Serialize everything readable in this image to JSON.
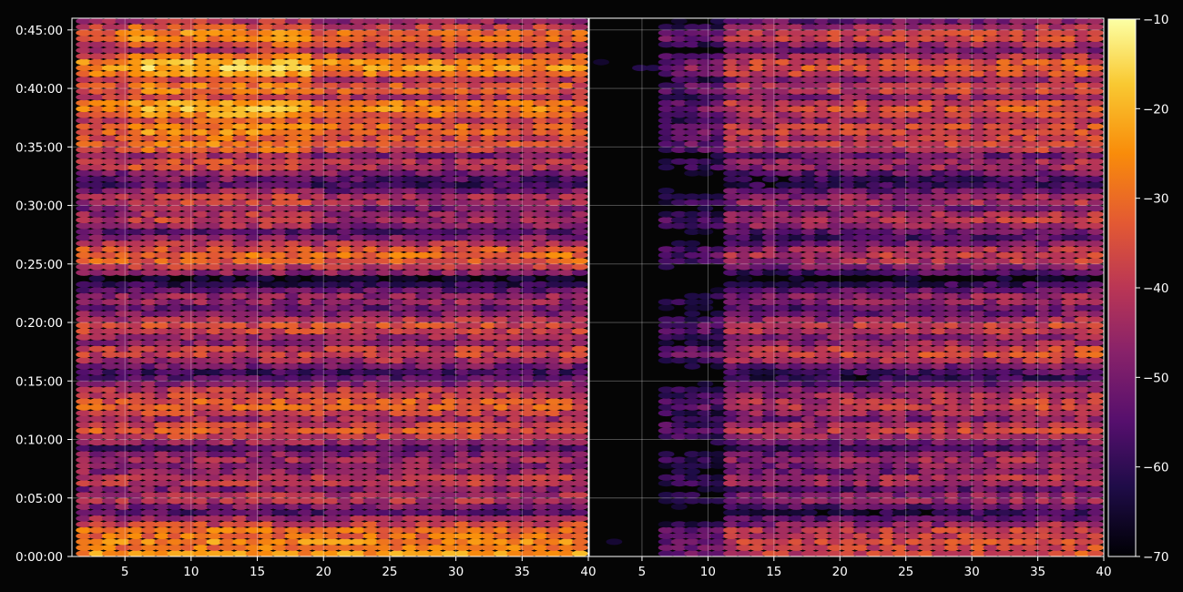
{
  "chart_data": {
    "type": "heatmap",
    "title": "",
    "panels": [
      {
        "name": "",
        "x_range": [
          1,
          40
        ],
        "x_ticks": [
          5,
          10,
          15,
          20,
          25,
          30,
          35,
          40
        ],
        "y_ticks": [
          "0:00:00",
          "0:05:00",
          "0:10:00",
          "0:15:00",
          "0:20:00",
          "0:25:00",
          "0:30:00",
          "0:35:00",
          "0:40:00",
          "0:45:00"
        ]
      },
      {
        "name": "",
        "x_range": [
          1,
          40
        ],
        "x_ticks": [
          5,
          10,
          15,
          20,
          25,
          30,
          35,
          40
        ],
        "y_ticks": []
      }
    ],
    "y_range_minutes": [
      0,
      46
    ],
    "colorbar": {
      "colormap": "inferno",
      "range": [
        -70,
        -10
      ],
      "ticks": [
        "−10",
        "−20",
        "−30",
        "−40",
        "−50",
        "−60",
        "−70"
      ]
    },
    "approx_levels": {
      "description_rows": "time rows (minutes) with approximate level in dB for left panel / right panel",
      "rows": [
        {
          "t": 0.3,
          "left": -24,
          "right": -42
        },
        {
          "t": 1.2,
          "left": -26,
          "right": -40
        },
        {
          "t": 2.0,
          "left": -30,
          "right": -44
        },
        {
          "t": 5.0,
          "left": -42,
          "right": -52
        },
        {
          "t": 6.5,
          "left": -40,
          "right": -48
        },
        {
          "t": 8.2,
          "left": -44,
          "right": -50
        },
        {
          "t": 10.8,
          "left": -34,
          "right": -44
        },
        {
          "t": 12.9,
          "left": -32,
          "right": -44
        },
        {
          "t": 13.8,
          "left": -38,
          "right": -48
        },
        {
          "t": 17.4,
          "left": -38,
          "right": -42
        },
        {
          "t": 19.6,
          "left": -36,
          "right": -44
        },
        {
          "t": 22.0,
          "left": -46,
          "right": -52
        },
        {
          "t": 25.7,
          "left": -30,
          "right": -44
        },
        {
          "t": 28.8,
          "left": -44,
          "right": -46
        },
        {
          "t": 30.5,
          "left": -44,
          "right": -50
        },
        {
          "t": 33.5,
          "left": -42,
          "right": -50
        },
        {
          "t": 35.3,
          "left": -34,
          "right": -42
        },
        {
          "t": 36.5,
          "left": -32,
          "right": -42
        },
        {
          "t": 38.3,
          "left": -26,
          "right": -40
        },
        {
          "t": 40.0,
          "left": -34,
          "right": -44
        },
        {
          "t": 41.8,
          "left": -24,
          "right": -38
        },
        {
          "t": 44.5,
          "left": -32,
          "right": -42
        }
      ]
    }
  }
}
